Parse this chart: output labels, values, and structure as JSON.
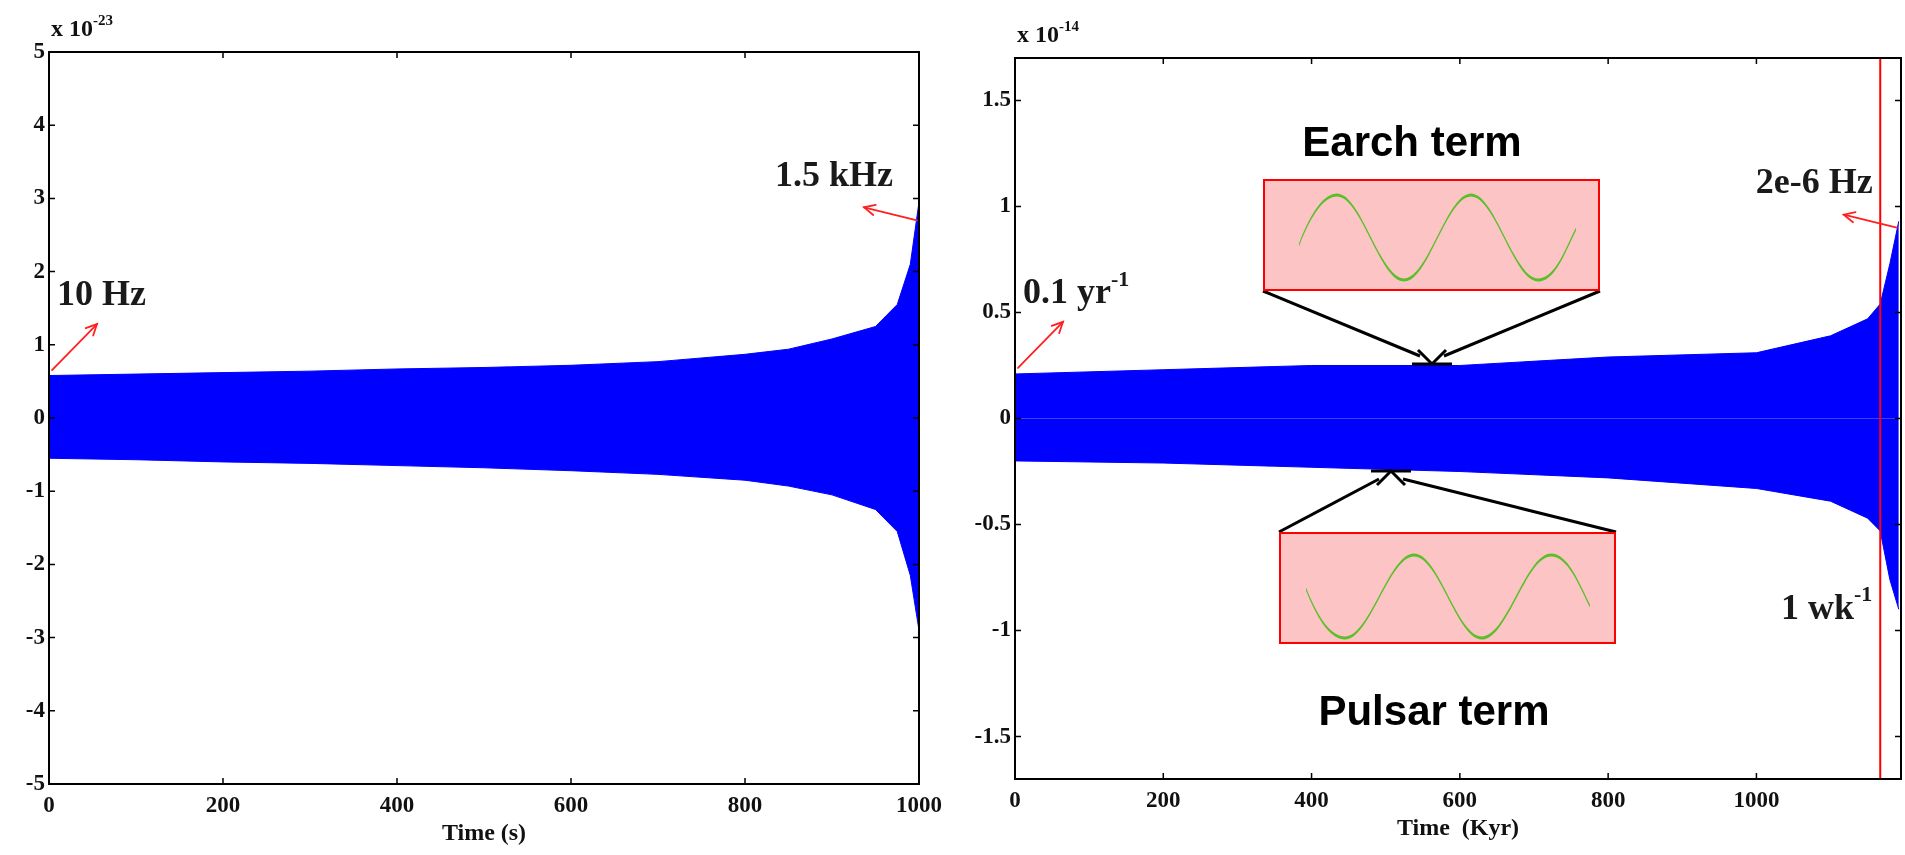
{
  "chart_data": [
    {
      "type": "area",
      "ylabel": "x 10$^{-23}$",
      "xlabel": "Time (s)",
      "x": [
        0,
        100,
        200,
        300,
        400,
        500,
        600,
        700,
        800,
        850,
        900,
        950,
        975,
        990,
        1000
      ],
      "series": [
        {
          "color": "#0000ff",
          "values": [
            0.58,
            0.6,
            0.62,
            0.64,
            0.67,
            0.69,
            0.72,
            0.77,
            0.87,
            0.94,
            1.08,
            1.25,
            1.55,
            2.1,
            2.95
          ]
        },
        {
          "color": "#0000ff",
          "values": [
            -0.55,
            -0.57,
            -0.6,
            -0.62,
            -0.65,
            -0.68,
            -0.72,
            -0.77,
            -0.85,
            -0.93,
            -1.05,
            -1.25,
            -1.55,
            -2.15,
            -2.9
          ]
        }
      ],
      "xlim": [
        0,
        1000
      ],
      "ylim": [
        -5,
        5
      ],
      "xticks": [
        0,
        200,
        400,
        600,
        800,
        1000
      ],
      "yticks": [
        -5,
        -4,
        -3,
        -2,
        -1,
        0,
        1,
        2,
        3,
        4,
        5
      ],
      "annotations": [
        {
          "text": "10 Hz",
          "x": 0,
          "y": 0.6
        },
        {
          "text": "1.5 kHz",
          "x": 1000,
          "y": 2.7
        }
      ]
    },
    {
      "type": "area",
      "ylabel": "x 10$^{-14}$",
      "xlabel": "Time  (Kyr)",
      "x": [
        0,
        200,
        400,
        600,
        800,
        1000,
        1100,
        1150,
        1167,
        1180,
        1192
      ],
      "series": [
        {
          "color": "#0000ff",
          "values": [
            0.21,
            0.23,
            0.25,
            0.25,
            0.29,
            0.31,
            0.39,
            0.47,
            0.54,
            0.73,
            0.93
          ]
        },
        {
          "color": "#0000ff",
          "values": [
            -0.2,
            -0.21,
            -0.23,
            -0.25,
            -0.28,
            -0.33,
            -0.39,
            -0.47,
            -0.53,
            -0.76,
            -0.9
          ]
        }
      ],
      "xlim": [
        0,
        1195
      ],
      "ylim": [
        -1.7,
        1.7
      ],
      "xticks": [
        0,
        200,
        400,
        600,
        800,
        1000
      ],
      "yticks": [
        -1.5,
        -1,
        -0.5,
        0,
        0.5,
        1,
        1.5
      ],
      "ref_lines": [
        {
          "axis": "x",
          "value": 1167,
          "color": "#ff0000"
        }
      ],
      "annotations": [
        {
          "text": "0.1 yr$^{-1}$",
          "x": 0,
          "y": 0.22
        },
        {
          "text": "2e-6 Hz",
          "x": 1192,
          "y": 0.9
        },
        {
          "text": "1 wk$^{-1}$",
          "x": 1167,
          "y": -0.9
        },
        "Earch term",
        "Pulsar term"
      ]
    }
  ]
}
